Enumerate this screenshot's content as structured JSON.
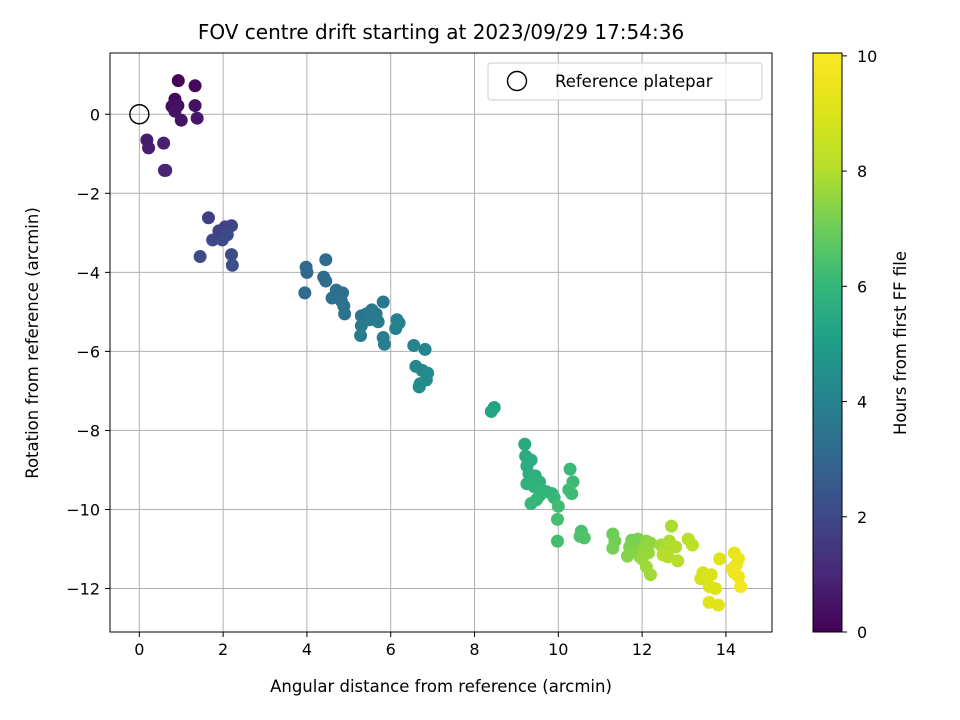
{
  "chart_data": {
    "type": "scatter",
    "title": "FOV centre drift starting at 2023/09/29 17:54:36",
    "xlabel": "Angular distance from reference (arcmin)",
    "ylabel": "Rotation from reference (arcmin)",
    "xlim": [
      -0.7,
      15.1
    ],
    "ylim": [
      -13.1,
      1.55
    ],
    "xticks": [
      0,
      2,
      4,
      6,
      8,
      10,
      12,
      14
    ],
    "xtick_labels": [
      "0",
      "2",
      "4",
      "6",
      "8",
      "10",
      "12",
      "14"
    ],
    "yticks": [
      0,
      -2,
      -4,
      -6,
      -8,
      -10,
      -12
    ],
    "ytick_labels": [
      "0",
      "−2",
      "−4",
      "−6",
      "−8",
      "−10",
      "−12"
    ],
    "grid": true,
    "legend": {
      "placement": "top-right",
      "entries": [
        "Reference platepar"
      ]
    },
    "reference_point": {
      "x": 0,
      "y": 0,
      "label": "Reference platepar"
    },
    "colorbar": {
      "label": "Hours from first FF file",
      "colormap": "viridis",
      "range": [
        0,
        10.05
      ],
      "ticks": [
        0,
        2,
        4,
        6,
        8,
        10
      ],
      "tick_labels": [
        "0",
        "2",
        "4",
        "6",
        "8",
        "10"
      ]
    },
    "points": [
      {
        "x": 0.93,
        "y": 0.85,
        "h": 0.1
      },
      {
        "x": 1.33,
        "y": 0.72,
        "h": 0.15
      },
      {
        "x": 0.85,
        "y": 0.38,
        "h": 0.2
      },
      {
        "x": 0.78,
        "y": 0.2,
        "h": 0.3
      },
      {
        "x": 0.92,
        "y": 0.22,
        "h": 0.35
      },
      {
        "x": 1.33,
        "y": 0.22,
        "h": 0.4
      },
      {
        "x": 0.85,
        "y": 0.08,
        "h": 0.45
      },
      {
        "x": 1.0,
        "y": -0.15,
        "h": 0.5
      },
      {
        "x": 1.38,
        "y": -0.1,
        "h": 0.55
      },
      {
        "x": 0.18,
        "y": -0.65,
        "h": 0.7
      },
      {
        "x": 0.22,
        "y": -0.85,
        "h": 0.75
      },
      {
        "x": 0.58,
        "y": -0.73,
        "h": 0.8
      },
      {
        "x": 0.6,
        "y": -1.42,
        "h": 0.9
      },
      {
        "x": 0.63,
        "y": -1.42,
        "h": 0.95
      },
      {
        "x": 1.65,
        "y": -2.62,
        "h": 1.7
      },
      {
        "x": 1.9,
        "y": -2.95,
        "h": 1.8
      },
      {
        "x": 2.05,
        "y": -2.85,
        "h": 1.85
      },
      {
        "x": 2.2,
        "y": -2.82,
        "h": 1.9
      },
      {
        "x": 1.75,
        "y": -3.18,
        "h": 1.95
      },
      {
        "x": 1.98,
        "y": -3.18,
        "h": 2.0
      },
      {
        "x": 2.1,
        "y": -3.05,
        "h": 2.05
      },
      {
        "x": 1.45,
        "y": -3.6,
        "h": 2.1
      },
      {
        "x": 2.2,
        "y": -3.55,
        "h": 2.15
      },
      {
        "x": 2.22,
        "y": -3.82,
        "h": 2.2
      },
      {
        "x": 3.98,
        "y": -3.87,
        "h": 3.0
      },
      {
        "x": 4.0,
        "y": -4.0,
        "h": 3.05
      },
      {
        "x": 3.95,
        "y": -4.52,
        "h": 3.1
      },
      {
        "x": 4.45,
        "y": -3.68,
        "h": 3.1
      },
      {
        "x": 4.4,
        "y": -4.12,
        "h": 3.15
      },
      {
        "x": 4.45,
        "y": -4.22,
        "h": 3.2
      },
      {
        "x": 4.7,
        "y": -4.45,
        "h": 3.25
      },
      {
        "x": 4.85,
        "y": -4.52,
        "h": 3.3
      },
      {
        "x": 4.6,
        "y": -4.65,
        "h": 3.35
      },
      {
        "x": 4.82,
        "y": -4.72,
        "h": 3.35
      },
      {
        "x": 4.88,
        "y": -4.85,
        "h": 3.4
      },
      {
        "x": 4.9,
        "y": -5.05,
        "h": 3.45
      },
      {
        "x": 5.3,
        "y": -5.1,
        "h": 3.5
      },
      {
        "x": 5.42,
        "y": -5.05,
        "h": 3.55
      },
      {
        "x": 5.55,
        "y": -4.95,
        "h": 3.6
      },
      {
        "x": 5.65,
        "y": -5.05,
        "h": 3.65
      },
      {
        "x": 5.82,
        "y": -4.75,
        "h": 3.65
      },
      {
        "x": 5.5,
        "y": -5.2,
        "h": 3.7
      },
      {
        "x": 5.3,
        "y": -5.35,
        "h": 3.7
      },
      {
        "x": 5.7,
        "y": -5.25,
        "h": 3.75
      },
      {
        "x": 5.28,
        "y": -5.6,
        "h": 3.8
      },
      {
        "x": 5.82,
        "y": -5.65,
        "h": 3.85
      },
      {
        "x": 5.85,
        "y": -5.82,
        "h": 3.9
      },
      {
        "x": 6.15,
        "y": -5.2,
        "h": 3.9
      },
      {
        "x": 6.2,
        "y": -5.28,
        "h": 3.95
      },
      {
        "x": 6.12,
        "y": -5.42,
        "h": 4.0
      },
      {
        "x": 6.55,
        "y": -5.85,
        "h": 4.1
      },
      {
        "x": 6.82,
        "y": -5.95,
        "h": 4.15
      },
      {
        "x": 6.6,
        "y": -6.38,
        "h": 4.2
      },
      {
        "x": 6.75,
        "y": -6.48,
        "h": 4.25
      },
      {
        "x": 6.88,
        "y": -6.55,
        "h": 4.3
      },
      {
        "x": 6.85,
        "y": -6.72,
        "h": 4.3
      },
      {
        "x": 6.7,
        "y": -6.82,
        "h": 4.35
      },
      {
        "x": 6.68,
        "y": -6.9,
        "h": 4.4
      },
      {
        "x": 8.47,
        "y": -7.42,
        "h": 5.2
      },
      {
        "x": 8.4,
        "y": -7.52,
        "h": 5.25
      },
      {
        "x": 9.2,
        "y": -8.35,
        "h": 5.5
      },
      {
        "x": 9.22,
        "y": -8.65,
        "h": 5.55
      },
      {
        "x": 9.35,
        "y": -8.75,
        "h": 5.6
      },
      {
        "x": 9.25,
        "y": -8.9,
        "h": 5.6
      },
      {
        "x": 9.3,
        "y": -9.1,
        "h": 5.65
      },
      {
        "x": 9.45,
        "y": -9.15,
        "h": 5.7
      },
      {
        "x": 9.55,
        "y": -9.3,
        "h": 5.75
      },
      {
        "x": 9.25,
        "y": -9.35,
        "h": 5.8
      },
      {
        "x": 9.42,
        "y": -9.42,
        "h": 5.85
      },
      {
        "x": 9.6,
        "y": -9.5,
        "h": 5.85
      },
      {
        "x": 9.72,
        "y": -9.55,
        "h": 5.9
      },
      {
        "x": 9.85,
        "y": -9.6,
        "h": 5.95
      },
      {
        "x": 9.55,
        "y": -9.65,
        "h": 6.0
      },
      {
        "x": 9.48,
        "y": -9.75,
        "h": 6.0
      },
      {
        "x": 9.35,
        "y": -9.85,
        "h": 6.05
      },
      {
        "x": 9.9,
        "y": -9.7,
        "h": 6.05
      },
      {
        "x": 10.28,
        "y": -8.98,
        "h": 6.1
      },
      {
        "x": 10.35,
        "y": -9.3,
        "h": 6.15
      },
      {
        "x": 10.25,
        "y": -9.5,
        "h": 6.2
      },
      {
        "x": 10.32,
        "y": -9.6,
        "h": 6.2
      },
      {
        "x": 10.0,
        "y": -9.92,
        "h": 6.25
      },
      {
        "x": 9.98,
        "y": -10.25,
        "h": 6.3
      },
      {
        "x": 9.98,
        "y": -10.8,
        "h": 6.3
      },
      {
        "x": 10.55,
        "y": -10.55,
        "h": 6.4
      },
      {
        "x": 10.52,
        "y": -10.68,
        "h": 6.45
      },
      {
        "x": 10.62,
        "y": -10.72,
        "h": 6.5
      },
      {
        "x": 11.3,
        "y": -10.62,
        "h": 7.0
      },
      {
        "x": 11.35,
        "y": -10.8,
        "h": 7.05
      },
      {
        "x": 11.3,
        "y": -10.98,
        "h": 7.1
      },
      {
        "x": 11.75,
        "y": -10.78,
        "h": 7.15
      },
      {
        "x": 11.9,
        "y": -10.75,
        "h": 7.2
      },
      {
        "x": 11.7,
        "y": -10.95,
        "h": 7.25
      },
      {
        "x": 11.85,
        "y": -11.05,
        "h": 7.3
      },
      {
        "x": 11.65,
        "y": -11.18,
        "h": 7.35
      },
      {
        "x": 11.95,
        "y": -11.2,
        "h": 7.4
      },
      {
        "x": 12.1,
        "y": -10.8,
        "h": 7.45
      },
      {
        "x": 12.2,
        "y": -10.85,
        "h": 7.5
      },
      {
        "x": 12.05,
        "y": -11.0,
        "h": 7.55
      },
      {
        "x": 12.15,
        "y": -11.1,
        "h": 7.6
      },
      {
        "x": 12.0,
        "y": -11.25,
        "h": 7.65
      },
      {
        "x": 12.1,
        "y": -11.45,
        "h": 7.7
      },
      {
        "x": 12.2,
        "y": -11.65,
        "h": 7.75
      },
      {
        "x": 12.45,
        "y": -10.9,
        "h": 7.8
      },
      {
        "x": 12.55,
        "y": -11.05,
        "h": 7.85
      },
      {
        "x": 12.7,
        "y": -10.42,
        "h": 7.9
      },
      {
        "x": 12.65,
        "y": -10.8,
        "h": 7.95
      },
      {
        "x": 12.8,
        "y": -10.95,
        "h": 8.0
      },
      {
        "x": 12.62,
        "y": -11.2,
        "h": 8.05
      },
      {
        "x": 12.85,
        "y": -11.3,
        "h": 8.1
      },
      {
        "x": 12.5,
        "y": -11.15,
        "h": 8.1
      },
      {
        "x": 13.1,
        "y": -10.75,
        "h": 8.2
      },
      {
        "x": 13.2,
        "y": -10.9,
        "h": 8.25
      },
      {
        "x": 13.45,
        "y": -11.6,
        "h": 8.8
      },
      {
        "x": 13.55,
        "y": -11.7,
        "h": 8.85
      },
      {
        "x": 13.4,
        "y": -11.75,
        "h": 8.9
      },
      {
        "x": 13.65,
        "y": -11.65,
        "h": 8.95
      },
      {
        "x": 13.6,
        "y": -11.95,
        "h": 9.0
      },
      {
        "x": 13.75,
        "y": -12.0,
        "h": 9.05
      },
      {
        "x": 13.85,
        "y": -11.25,
        "h": 9.1
      },
      {
        "x": 13.6,
        "y": -12.35,
        "h": 9.15
      },
      {
        "x": 13.82,
        "y": -12.42,
        "h": 9.2
      },
      {
        "x": 14.2,
        "y": -11.1,
        "h": 9.4
      },
      {
        "x": 14.3,
        "y": -11.25,
        "h": 9.45
      },
      {
        "x": 14.25,
        "y": -11.4,
        "h": 9.5
      },
      {
        "x": 14.15,
        "y": -11.5,
        "h": 9.55
      },
      {
        "x": 14.3,
        "y": -11.7,
        "h": 9.6
      },
      {
        "x": 14.2,
        "y": -11.6,
        "h": 9.65
      },
      {
        "x": 14.35,
        "y": -11.95,
        "h": 9.7
      }
    ]
  }
}
